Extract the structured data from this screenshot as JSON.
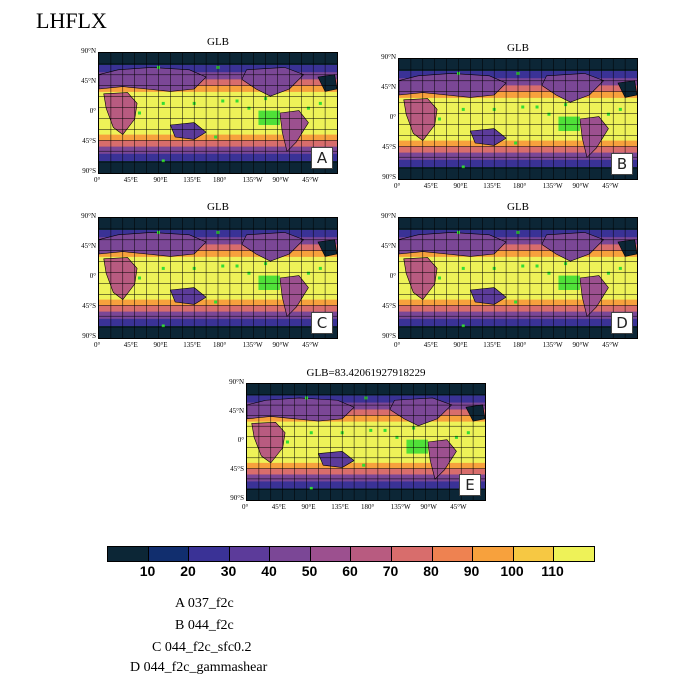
{
  "title": "LHFLX",
  "panels": [
    {
      "id": "A",
      "title": "GLB",
      "letter": "A"
    },
    {
      "id": "B",
      "title": "GLB",
      "letter": "B"
    },
    {
      "id": "C",
      "title": "GLB",
      "letter": "C"
    },
    {
      "id": "D",
      "title": "GLB",
      "letter": "D"
    },
    {
      "id": "E",
      "title": "GLB=83.42061927918229",
      "letter": "E"
    }
  ],
  "lat_labels": [
    "90°N",
    "45°N",
    "0°",
    "45°S",
    "90°S"
  ],
  "lon_labels": [
    "0°",
    "45°E",
    "90°E",
    "135°E",
    "180°",
    "135°W",
    "90°W",
    "45°W"
  ],
  "colorbar": {
    "colors": [
      "#0c2636",
      "#112e6e",
      "#3a3296",
      "#5c3b9a",
      "#7b4796",
      "#9c508f",
      "#b85b80",
      "#d86d6c",
      "#ee8251",
      "#f7a13d",
      "#f6c843",
      "#eef258"
    ],
    "labels": [
      "10",
      "20",
      "30",
      "40",
      "50",
      "60",
      "70",
      "80",
      "90",
      "100",
      "110"
    ]
  },
  "legend": [
    "A  037_f2c",
    "B  044_f2c",
    "C  044_f2c_sfc0.2",
    "D  044_f2c_gammashear"
  ]
}
